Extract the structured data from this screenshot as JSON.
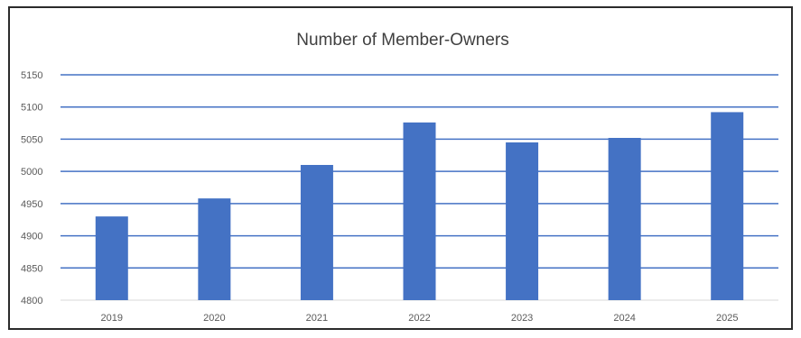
{
  "chart_data": {
    "type": "bar",
    "title": "Number of Member-Owners",
    "categories": [
      "2019",
      "2020",
      "2021",
      "2022",
      "2023",
      "2024",
      "2025"
    ],
    "values": [
      4930,
      4958,
      5010,
      5076,
      5045,
      5052,
      5092
    ],
    "xlabel": "",
    "ylabel": "",
    "ylim": [
      4800,
      5150
    ],
    "yticks": [
      4800,
      4850,
      4900,
      4950,
      5000,
      5050,
      5100,
      5150
    ],
    "grid": true,
    "legend": "none",
    "colors": {
      "bar": "#4472c4",
      "gridline": "#4472c4",
      "baseline": "#d9d9d9",
      "title": "#404040",
      "tick_label": "#595959",
      "frame": "#2b2b2b"
    }
  }
}
